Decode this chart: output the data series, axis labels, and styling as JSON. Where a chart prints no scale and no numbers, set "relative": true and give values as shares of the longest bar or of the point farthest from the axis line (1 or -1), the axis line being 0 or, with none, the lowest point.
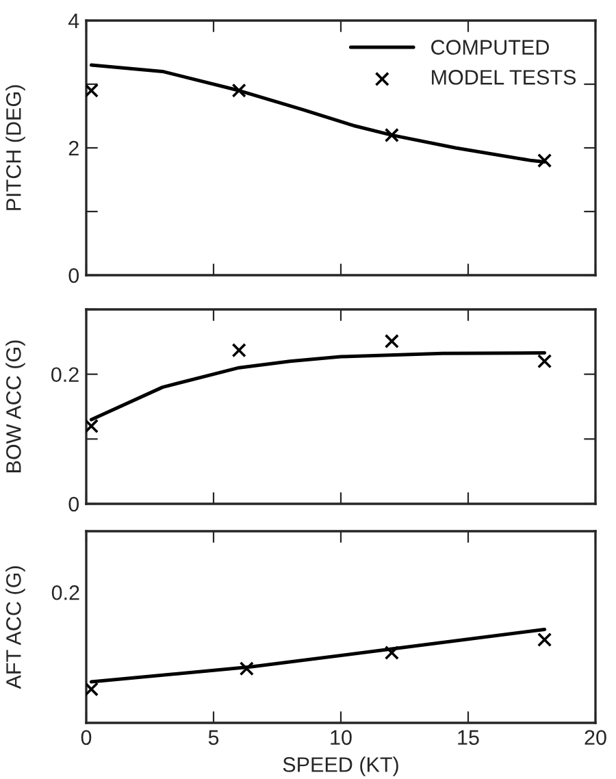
{
  "chart_data": [
    {
      "type": "line",
      "ylabel": "PITCH (DEG)",
      "xlim": [
        0,
        20
      ],
      "xticks": [
        {
          "value": 0,
          "label": null
        },
        {
          "value": 5,
          "label": null
        },
        {
          "value": 10,
          "label": null
        },
        {
          "value": 15,
          "label": null
        },
        {
          "value": 20,
          "label": null
        }
      ],
      "ylim": [
        0,
        4
      ],
      "yticks": [
        0,
        {
          "value": 1,
          "label": null
        },
        2,
        {
          "value": 3,
          "label": null
        },
        4
      ],
      "tick_labels": "y",
      "legend": "top right",
      "grid": false,
      "series": [
        {
          "name": "COMPUTED",
          "color": "#000000",
          "x": [
            0.2,
            3,
            6,
            8.5,
            10.5,
            12,
            14.5,
            17.5,
            18
          ],
          "values": [
            3.3,
            3.2,
            2.9,
            2.6,
            2.35,
            2.2,
            2.0,
            1.8,
            1.78
          ]
        },
        {
          "name": "MODEL TESTS",
          "type": "scatter",
          "marker": "cross",
          "color": "#000000",
          "x": [
            0.2,
            6,
            12,
            18
          ],
          "values": [
            2.9,
            2.9,
            2.2,
            1.8
          ]
        }
      ]
    },
    {
      "type": "line",
      "ylabel": "BOW ACC (G)",
      "xlim": [
        0,
        20
      ],
      "xticks": [
        {
          "value": 0,
          "label": null
        },
        {
          "value": 5,
          "label": null
        },
        {
          "value": 10,
          "label": null
        },
        {
          "value": 15,
          "label": null
        },
        {
          "value": 20,
          "label": null
        }
      ],
      "ylim": [
        0,
        0.3
      ],
      "yticks": [
        0,
        {
          "value": 0.1,
          "label": null
        },
        0.2,
        {
          "value": 0.3,
          "label": null
        }
      ],
      "tick_labels": "y",
      "grid": false,
      "series": [
        {
          "color": "#000000",
          "x": [
            0.2,
            3,
            6,
            8,
            10,
            14,
            18
          ],
          "values": [
            0.13,
            0.18,
            0.21,
            0.22,
            0.227,
            0.232,
            0.233
          ]
        },
        {
          "type": "scatter",
          "marker": "cross",
          "color": "#000000",
          "x": [
            0.2,
            6,
            12,
            18
          ],
          "values": [
            0.12,
            0.237,
            0.251,
            0.22
          ]
        }
      ]
    },
    {
      "type": "line",
      "ylabel": "AFT ACC (G)",
      "xlabel": "SPEED (KT)",
      "xlim": [
        0,
        20
      ],
      "xticks": [
        0,
        5,
        10,
        15,
        20
      ],
      "relative": true,
      "tick_labels": "x",
      "grid": false,
      "annotations": [
        "0.2"
      ],
      "series": [
        {
          "color": "#000000",
          "x": [
            0.2,
            6.5,
            12,
            18
          ],
          "values": [
            0.44,
            0.6,
            0.79,
            1.0
          ]
        },
        {
          "type": "scatter",
          "marker": "cross",
          "color": "#000000",
          "x": [
            0.2,
            6.3,
            12,
            18
          ],
          "values": [
            0.36,
            0.58,
            0.75,
            0.89
          ]
        }
      ]
    }
  ]
}
